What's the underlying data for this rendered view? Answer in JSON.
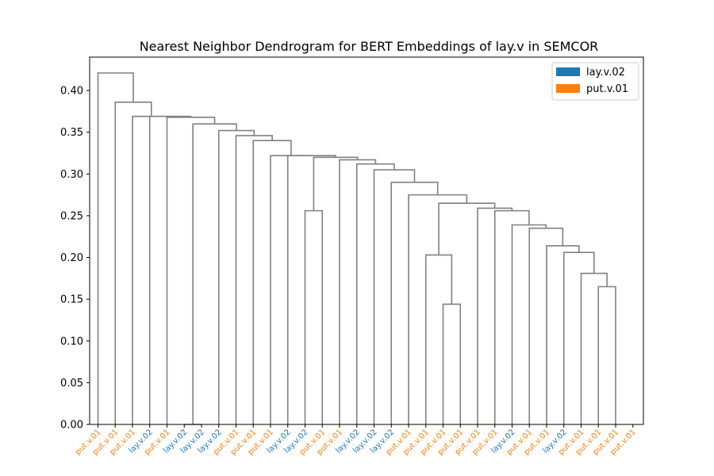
{
  "chart_data": {
    "type": "dendrogram",
    "title": "Nearest Neighbor Dendrogram for BERT Embeddings of lay.v in SEMCOR",
    "xlabel": "",
    "ylabel": "",
    "ylim": [
      0,
      0.44
    ],
    "yticks": [
      0.0,
      0.05,
      0.1,
      0.15,
      0.2,
      0.25,
      0.3,
      0.35,
      0.4
    ],
    "ytick_labels": [
      "0.00",
      "0.05",
      "0.10",
      "0.15",
      "0.20",
      "0.25",
      "0.30",
      "0.35",
      "0.40"
    ],
    "link_color": "#808080",
    "leaves": [
      {
        "label": "put.v.01",
        "sense": "put.v.01"
      },
      {
        "label": "put.v.01",
        "sense": "put.v.01"
      },
      {
        "label": "put.v.01",
        "sense": "put.v.01"
      },
      {
        "label": "lay.v.02",
        "sense": "lay.v.02"
      },
      {
        "label": "put.v.01",
        "sense": "put.v.01"
      },
      {
        "label": "lay.v.02",
        "sense": "lay.v.02"
      },
      {
        "label": "lay.v.02",
        "sense": "lay.v.02"
      },
      {
        "label": "lay.v.02",
        "sense": "lay.v.02"
      },
      {
        "label": "put.v.01",
        "sense": "put.v.01"
      },
      {
        "label": "put.v.01",
        "sense": "put.v.01"
      },
      {
        "label": "put.v.01",
        "sense": "put.v.01"
      },
      {
        "label": "lay.v.02",
        "sense": "lay.v.02"
      },
      {
        "label": "lay.v.02",
        "sense": "lay.v.02"
      },
      {
        "label": "put.v.01",
        "sense": "put.v.01"
      },
      {
        "label": "put.v.01",
        "sense": "put.v.01"
      },
      {
        "label": "lay.v.02",
        "sense": "lay.v.02"
      },
      {
        "label": "lay.v.02",
        "sense": "lay.v.02"
      },
      {
        "label": "lay.v.02",
        "sense": "lay.v.02"
      },
      {
        "label": "put.v.01",
        "sense": "put.v.01"
      },
      {
        "label": "put.v.01",
        "sense": "put.v.01"
      },
      {
        "label": "put.v.01",
        "sense": "put.v.01"
      },
      {
        "label": "put.v.01",
        "sense": "put.v.01"
      },
      {
        "label": "put.v.01",
        "sense": "put.v.01"
      },
      {
        "label": "put.v.01",
        "sense": "put.v.01"
      },
      {
        "label": "lay.v.02",
        "sense": "lay.v.02"
      },
      {
        "label": "put.v.01",
        "sense": "put.v.01"
      },
      {
        "label": "put.v.01",
        "sense": "put.v.01"
      },
      {
        "label": "lay.v.02",
        "sense": "lay.v.02"
      },
      {
        "label": "put.v.01",
        "sense": "put.v.01"
      },
      {
        "label": "put.v.01",
        "sense": "put.v.01"
      },
      {
        "label": "put.v.01",
        "sense": "put.v.01"
      },
      {
        "label": "put.v.01",
        "sense": "put.v.01"
      }
    ],
    "merges": [
      {
        "left": "L29",
        "right": "L30",
        "height": 0.165
      },
      {
        "left": "L28",
        "right": "M0",
        "height": 0.181
      },
      {
        "left": "L27",
        "right": "M1",
        "height": 0.206
      },
      {
        "left": "L26",
        "right": "M2",
        "height": 0.214
      },
      {
        "left": "L25",
        "right": "M3",
        "height": 0.235
      },
      {
        "left": "L24",
        "right": "M4",
        "height": 0.239
      },
      {
        "left": "L23",
        "right": "M5",
        "height": 0.256
      },
      {
        "left": "L20",
        "right": "L21",
        "height": 0.144
      },
      {
        "left": "L19",
        "right": "M7",
        "height": 0.203
      },
      {
        "left": "L22",
        "right": "M6",
        "height": 0.259
      },
      {
        "left": "M8",
        "right": "M9",
        "height": 0.265
      },
      {
        "left": "L18",
        "right": "M10",
        "height": 0.275
      },
      {
        "left": "L17",
        "right": "M11",
        "height": 0.29
      },
      {
        "left": "L16",
        "right": "M12",
        "height": 0.305
      },
      {
        "left": "L15",
        "right": "M13",
        "height": 0.312
      },
      {
        "left": "L14",
        "right": "M14",
        "height": 0.317
      },
      {
        "left": "L12",
        "right": "L13",
        "height": 0.256
      },
      {
        "left": "M16",
        "right": "M15",
        "height": 0.32
      },
      {
        "left": "L11",
        "right": "M17",
        "height": 0.322
      },
      {
        "left": "L10",
        "right": "M18",
        "height": 0.322
      },
      {
        "left": "L9",
        "right": "M19",
        "height": 0.34
      },
      {
        "left": "L8",
        "right": "M20",
        "height": 0.346
      },
      {
        "left": "L7",
        "right": "M21",
        "height": 0.352
      },
      {
        "left": "L5",
        "right": "L6",
        "height": 0.0
      },
      {
        "left": "M23",
        "right": "M22",
        "height": 0.36
      },
      {
        "left": "L4",
        "right": "M24",
        "height": 0.368
      },
      {
        "left": "L3",
        "right": "M25",
        "height": 0.369
      },
      {
        "left": "L2",
        "right": "M26",
        "height": 0.369
      },
      {
        "left": "L1",
        "right": "M27",
        "height": 0.386
      },
      {
        "left": "L0",
        "right": "M28",
        "height": 0.421
      }
    ],
    "legend": {
      "position": "top-right",
      "entries": [
        {
          "label": "lay.v.02",
          "color": "#1f77b4"
        },
        {
          "label": "put.v.01",
          "color": "#ff7f0e"
        }
      ]
    }
  }
}
